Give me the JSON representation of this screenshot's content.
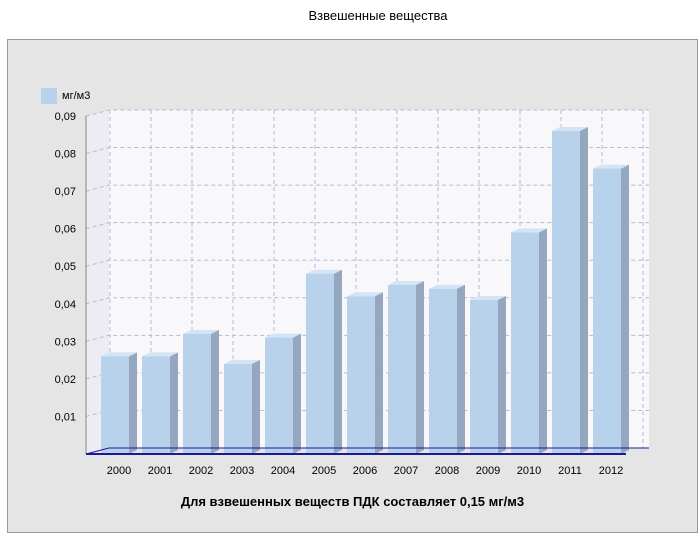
{
  "page": {
    "title": "Взвешенные вещества"
  },
  "legend": {
    "label": "мг/м3",
    "color": "#b9d2ec"
  },
  "note": "Для взвешенных веществ ПДК составляет 0,15 мг/м3",
  "chart_data": {
    "type": "bar",
    "title": "Взвешенные вещества",
    "categories": [
      "2000",
      "2001",
      "2002",
      "2003",
      "2004",
      "2005",
      "2006",
      "2007",
      "2008",
      "2009",
      "2010",
      "2011",
      "2012"
    ],
    "series": [
      {
        "name": "мг/м3",
        "values": [
          0.026,
          0.026,
          0.032,
          0.024,
          0.031,
          0.048,
          0.042,
          0.045,
          0.044,
          0.041,
          0.059,
          0.086,
          0.076
        ]
      }
    ],
    "ylim": [
      0,
      0.09
    ],
    "yticks": [
      "0,01",
      "0,02",
      "0,03",
      "0,04",
      "0,05",
      "0,06",
      "0,07",
      "0,08",
      "0,09"
    ],
    "grid": true,
    "legend_position": "top-left",
    "colors": {
      "front": "#b9d2ec",
      "side": "#94a7bf",
      "top": "#d4e4f4",
      "axis": "#1a1a9a",
      "grid": "#b8b8d8"
    }
  }
}
